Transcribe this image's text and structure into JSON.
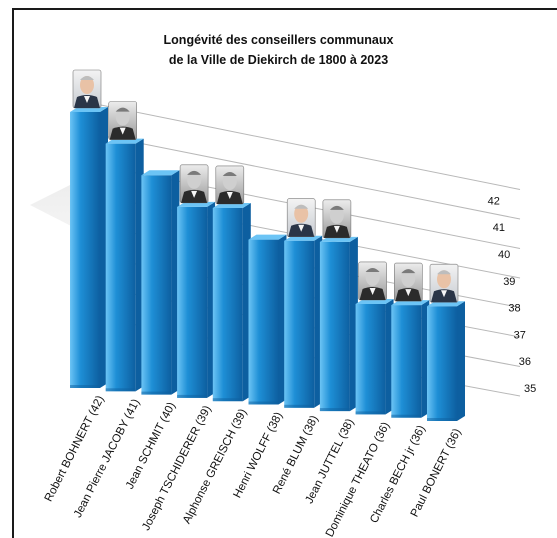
{
  "chart_data": {
    "type": "bar",
    "title_line1": "Longévité des conseillers communaux",
    "title_line2": "de la Ville de Diekirch de 1800 à 2023",
    "categories": [
      "Robert BOHNERT (42)",
      "Jean Pierre JACOBY (41)",
      "Jean SCHMIT (40)",
      "Joseph TSCHIDERER (39)",
      "Alphonse GREISCH (39)",
      "Henri WOLFF (38)",
      "René BLUM (38)",
      "Jean JUTTEL (38)",
      "Dominique THEATO (36)",
      "Charles BECH jr (36)",
      "Paul BONERT (36)"
    ],
    "values": [
      42,
      41,
      40,
      39,
      39,
      38,
      38,
      38,
      36,
      36,
      36
    ],
    "has_portrait": [
      true,
      true,
      false,
      true,
      true,
      false,
      true,
      true,
      true,
      true,
      true
    ],
    "portrait_color": [
      true,
      false,
      false,
      false,
      false,
      false,
      true,
      false,
      false,
      false,
      true
    ],
    "axis_ticks": [
      "35",
      "36",
      "37",
      "38",
      "39",
      "40",
      "41",
      "42"
    ],
    "ylim": [
      35,
      42
    ],
    "grid": true,
    "bar_color": "#1e8fd6",
    "bar_highlight": "#6cc4f5",
    "bar_shadow": "#0d5fa0"
  }
}
